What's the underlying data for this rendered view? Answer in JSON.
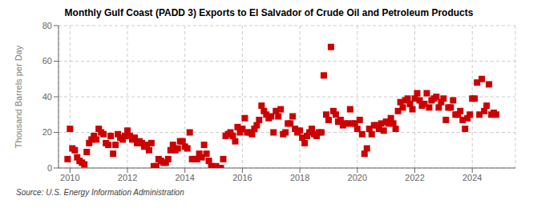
{
  "chart_data": {
    "type": "scatter",
    "title": "Monthly Gulf Coast (PADD 3) Exports to El Salvador of Crude Oil and Petroleum Products",
    "y_label": "Thousand Barrels per Day",
    "annotation": "Source: U.S. Energy Information Administration",
    "color": "#cc0000",
    "marker": "square",
    "grid": true,
    "xlim": [
      2009.6,
      2025.5
    ],
    "xticks": [
      2010,
      2012,
      2014,
      2016,
      2018,
      2020,
      2022,
      2024
    ],
    "ylim": [
      0,
      80
    ],
    "yticks": [
      0,
      20,
      40,
      60,
      80
    ],
    "x": [
      2009.917,
      2010.0,
      2010.083,
      2010.167,
      2010.25,
      2010.333,
      2010.417,
      2010.5,
      2010.583,
      2010.667,
      2010.75,
      2010.833,
      2010.917,
      2011.0,
      2011.083,
      2011.167,
      2011.25,
      2011.333,
      2011.417,
      2011.5,
      2011.583,
      2011.667,
      2011.75,
      2011.833,
      2011.917,
      2012.0,
      2012.083,
      2012.167,
      2012.25,
      2012.333,
      2012.417,
      2012.5,
      2012.583,
      2012.667,
      2012.75,
      2012.833,
      2012.917,
      2013.0,
      2013.083,
      2013.167,
      2013.25,
      2013.333,
      2013.417,
      2013.5,
      2013.583,
      2013.667,
      2013.75,
      2013.833,
      2013.917,
      2014.0,
      2014.083,
      2014.167,
      2014.25,
      2014.333,
      2014.417,
      2014.5,
      2014.583,
      2014.667,
      2014.75,
      2014.833,
      2014.917,
      2015.0,
      2015.083,
      2015.167,
      2015.25,
      2015.333,
      2015.417,
      2015.5,
      2015.583,
      2015.667,
      2015.75,
      2015.833,
      2015.917,
      2016.0,
      2016.083,
      2016.167,
      2016.25,
      2016.333,
      2016.417,
      2016.5,
      2016.583,
      2016.667,
      2016.75,
      2016.833,
      2016.917,
      2017.0,
      2017.083,
      2017.167,
      2017.25,
      2017.333,
      2017.417,
      2017.5,
      2017.583,
      2017.667,
      2017.75,
      2017.833,
      2017.917,
      2018.0,
      2018.083,
      2018.167,
      2018.25,
      2018.333,
      2018.417,
      2018.5,
      2018.583,
      2018.667,
      2018.75,
      2018.833,
      2018.917,
      2019.0,
      2019.083,
      2019.167,
      2019.25,
      2019.333,
      2019.417,
      2019.5,
      2019.583,
      2019.667,
      2019.75,
      2019.833,
      2019.917,
      2020.0,
      2020.083,
      2020.167,
      2020.25,
      2020.333,
      2020.417,
      2020.5,
      2020.583,
      2020.667,
      2020.75,
      2020.833,
      2020.917,
      2021.0,
      2021.083,
      2021.167,
      2021.25,
      2021.333,
      2021.417,
      2021.5,
      2021.583,
      2021.667,
      2021.75,
      2021.833,
      2021.917,
      2022.0,
      2022.083,
      2022.167,
      2022.25,
      2022.333,
      2022.417,
      2022.5,
      2022.583,
      2022.667,
      2022.75,
      2022.833,
      2022.917,
      2023.0,
      2023.083,
      2023.167,
      2023.25,
      2023.333,
      2023.417,
      2023.5,
      2023.583,
      2023.667,
      2023.75,
      2023.833,
      2023.917,
      2024.0,
      2024.083,
      2024.167,
      2024.25,
      2024.333,
      2024.417,
      2024.5,
      2024.583,
      2024.667,
      2024.75,
      2024.833
    ],
    "values": [
      5,
      22,
      11,
      10,
      6,
      4,
      3,
      2,
      9,
      14,
      16,
      18,
      16,
      22,
      20,
      19,
      14,
      13,
      18,
      8,
      13,
      19,
      17,
      16,
      18,
      21,
      18,
      16,
      17,
      14,
      15,
      14,
      12,
      13,
      10,
      14,
      1,
      1,
      5,
      4,
      3,
      3,
      5,
      10,
      13,
      10,
      11,
      15,
      15,
      12,
      11,
      20,
      5,
      5,
      5,
      8,
      6,
      13,
      8,
      4,
      1,
      0,
      1,
      0,
      0,
      5,
      18,
      19,
      20,
      18,
      15,
      23,
      20,
      22,
      28,
      20,
      20,
      19,
      22,
      24,
      27,
      35,
      32,
      30,
      28,
      29,
      20,
      32,
      29,
      33,
      19,
      20,
      25,
      25,
      29,
      22,
      20,
      21,
      17,
      14,
      18,
      20,
      22,
      19,
      18,
      20,
      20,
      52,
      30,
      27,
      68,
      32,
      30,
      26,
      27,
      24,
      25,
      25,
      33,
      25,
      25,
      22,
      27,
      19,
      8,
      11,
      22,
      19,
      24,
      24,
      22,
      25,
      21,
      26,
      25,
      28,
      25,
      22,
      32,
      37,
      34,
      38,
      39,
      36,
      33,
      39,
      42,
      38,
      35,
      36,
      42,
      34,
      38,
      39,
      40,
      34,
      37,
      39,
      27,
      34,
      34,
      38,
      30,
      30,
      32,
      27,
      22,
      28,
      30,
      39,
      39,
      48,
      30,
      50,
      32,
      35,
      47,
      30,
      31,
      30
    ]
  }
}
